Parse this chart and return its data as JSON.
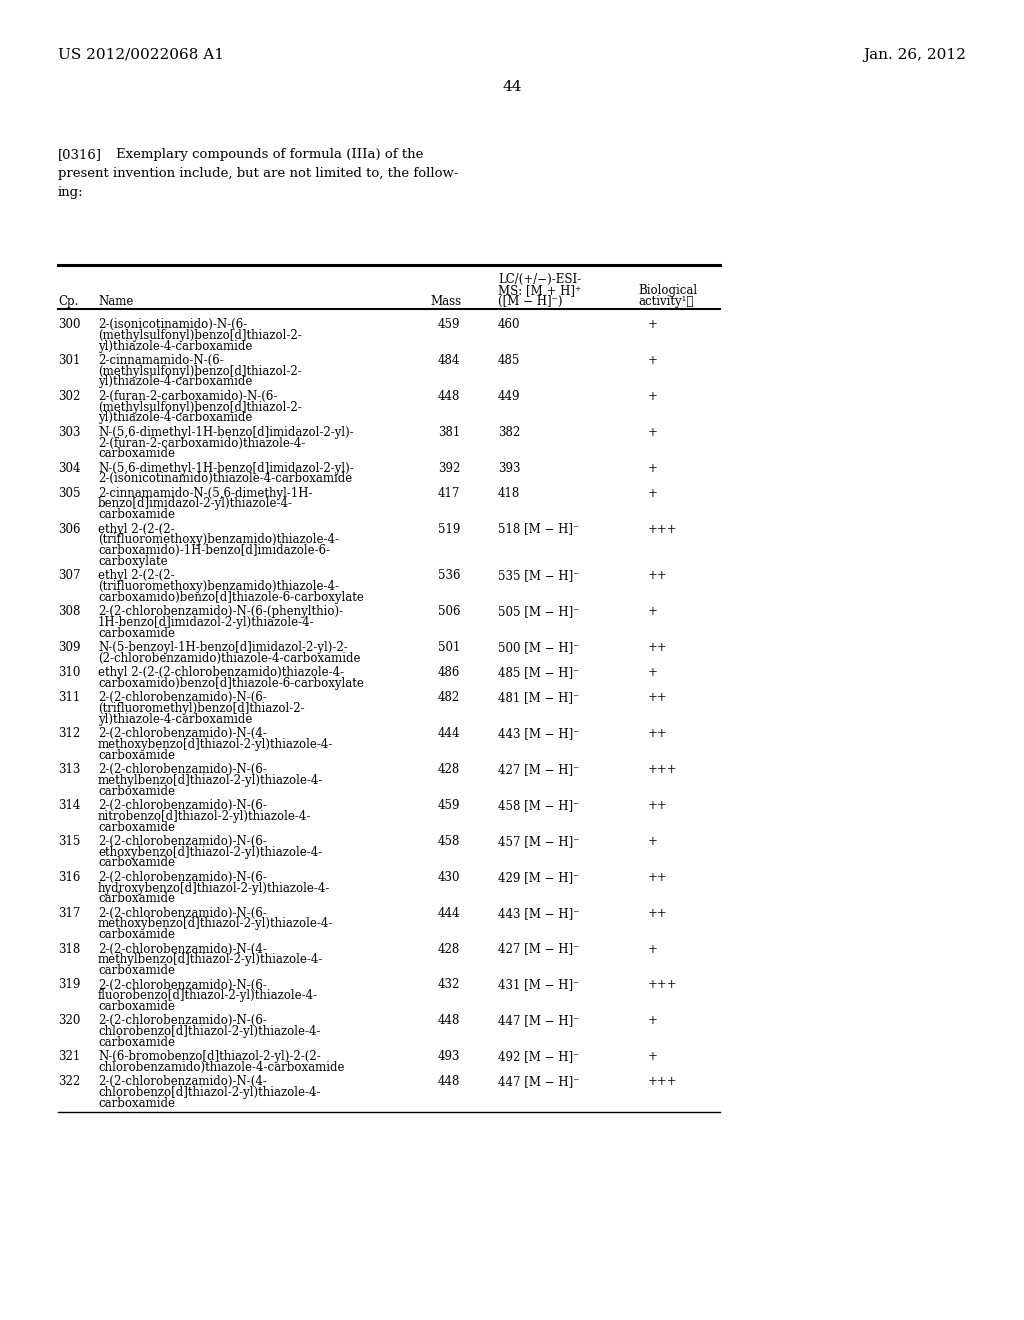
{
  "header_left": "US 2012/0022068 A1",
  "header_right": "Jan. 26, 2012",
  "page_number": "44",
  "compounds": [
    {
      "cp": "300",
      "name": "2-(isonicotinamido)-N-(6-\n(methylsulfonyl)benzo[d]thiazol-2-\nyl)thiazole-4-carboxamide",
      "mass": "459",
      "ms": "460",
      "bio": "+"
    },
    {
      "cp": "301",
      "name": "2-cinnamamido-N-(6-\n(methylsulfonyl)benzo[d]thiazol-2-\nyl)thiazole-4-carboxamide",
      "mass": "484",
      "ms": "485",
      "bio": "+"
    },
    {
      "cp": "302",
      "name": "2-(furan-2-carboxamido)-N-(6-\n(methylsulfonyl)benzo[d]thiazol-2-\nyl)thiazole-4-carboxamide",
      "mass": "448",
      "ms": "449",
      "bio": "+"
    },
    {
      "cp": "303",
      "name": "N-(5,6-dimethyl-1H-benzo[d]imidazol-2-yl)-\n2-(furan-2-carboxamido)thiazole-4-\ncarboxamide",
      "mass": "381",
      "ms": "382",
      "bio": "+"
    },
    {
      "cp": "304",
      "name": "N-(5,6-dimethyl-1H-benzo[d]imidazol-2-yl)-\n2-(isonicotinamido)thiazole-4-carboxamide",
      "mass": "392",
      "ms": "393",
      "bio": "+"
    },
    {
      "cp": "305",
      "name": "2-cinnamamido-N-(5,6-dimethyl-1H-\nbenzo[d]imidazol-2-yl)thiazole-4-\ncarboxamide",
      "mass": "417",
      "ms": "418",
      "bio": "+"
    },
    {
      "cp": "306",
      "name": "ethyl 2-(2-(2-\n(trifluoromethoxy)benzamido)thiazole-4-\ncarboxamido)-1H-benzo[d]imidazole-6-\ncarboxylate",
      "mass": "519",
      "ms": "518 [M − H]⁻",
      "bio": "+++"
    },
    {
      "cp": "307",
      "name": "ethyl 2-(2-(2-\n(trifluoromethoxy)benzamido)thiazole-4-\ncarboxamido)benzo[d]thiazole-6-carboxylate",
      "mass": "536",
      "ms": "535 [M − H]⁻",
      "bio": "++"
    },
    {
      "cp": "308",
      "name": "2-(2-chlorobenzamido)-N-(6-(phenylthio)-\n1H-benzo[d]imidazol-2-yl)thiazole-4-\ncarboxamide",
      "mass": "506",
      "ms": "505 [M − H]⁻",
      "bio": "+"
    },
    {
      "cp": "309",
      "name": "N-(5-benzoyl-1H-benzo[d]imidazol-2-yl)-2-\n(2-chlorobenzamido)thiazole-4-carboxamide",
      "mass": "501",
      "ms": "500 [M − H]⁻",
      "bio": "++"
    },
    {
      "cp": "310",
      "name": "ethyl 2-(2-(2-chlorobenzamido)thiazole-4-\ncarboxamido)benzo[d]thiazole-6-carboxylate",
      "mass": "486",
      "ms": "485 [M − H]⁻",
      "bio": "+"
    },
    {
      "cp": "311",
      "name": "2-(2-chlorobenzamido)-N-(6-\n(trifluoromethyl)benzo[d]thiazol-2-\nyl)thiazole-4-carboxamide",
      "mass": "482",
      "ms": "481 [M − H]⁻",
      "bio": "++"
    },
    {
      "cp": "312",
      "name": "2-(2-chlorobenzamido)-N-(4-\nmethoxybenzo[d]thiazol-2-yl)thiazole-4-\ncarboxamide",
      "mass": "444",
      "ms": "443 [M − H]⁻",
      "bio": "++"
    },
    {
      "cp": "313",
      "name": "2-(2-chlorobenzamido)-N-(6-\nmethylbenzo[d]thiazol-2-yl)thiazole-4-\ncarboxamide",
      "mass": "428",
      "ms": "427 [M − H]⁻",
      "bio": "+++"
    },
    {
      "cp": "314",
      "name": "2-(2-chlorobenzamido)-N-(6-\nnitrobenzo[d]thiazol-2-yl)thiazole-4-\ncarboxamide",
      "mass": "459",
      "ms": "458 [M − H]⁻",
      "bio": "++"
    },
    {
      "cp": "315",
      "name": "2-(2-chlorobenzamido)-N-(6-\nethoxybenzo[d]thiazol-2-yl)thiazole-4-\ncarboxamide",
      "mass": "458",
      "ms": "457 [M − H]⁻",
      "bio": "+"
    },
    {
      "cp": "316",
      "name": "2-(2-chlorobenzamido)-N-(6-\nhydroxybenzo[d]thiazol-2-yl)thiazole-4-\ncarboxamide",
      "mass": "430",
      "ms": "429 [M − H]⁻",
      "bio": "++"
    },
    {
      "cp": "317",
      "name": "2-(2-chlorobenzamido)-N-(6-\nmethoxybenzo[d]thiazol-2-yl)thiazole-4-\ncarboxamide",
      "mass": "444",
      "ms": "443 [M − H]⁻",
      "bio": "++"
    },
    {
      "cp": "318",
      "name": "2-(2-chlorobenzamido)-N-(4-\nmethylbenzo[d]thiazol-2-yl)thiazole-4-\ncarboxamide",
      "mass": "428",
      "ms": "427 [M − H]⁻",
      "bio": "+"
    },
    {
      "cp": "319",
      "name": "2-(2-chlorobenzamido)-N-(6-\nfluorobenzo[d]thiazol-2-yl)thiazole-4-\ncarboxamide",
      "mass": "432",
      "ms": "431 [M − H]⁻",
      "bio": "+++"
    },
    {
      "cp": "320",
      "name": "2-(2-chlorobenzamido)-N-(6-\nchlorobenzo[d]thiazol-2-yl)thiazole-4-\ncarboxamide",
      "mass": "448",
      "ms": "447 [M − H]⁻",
      "bio": "+"
    },
    {
      "cp": "321",
      "name": "N-(6-bromobenzo[d]thiazol-2-yl)-2-(2-\nchlorobenzamido)thiazole-4-carboxamide",
      "mass": "493",
      "ms": "492 [M − H]⁻",
      "bio": "+"
    },
    {
      "cp": "322",
      "name": "2-(2-chlorobenzamido)-N-(4-\nchlorobenzo[d]thiazol-2-yl)thiazole-4-\ncarboxamide",
      "mass": "448",
      "ms": "447 [M − H]⁻",
      "bio": "+++"
    }
  ]
}
